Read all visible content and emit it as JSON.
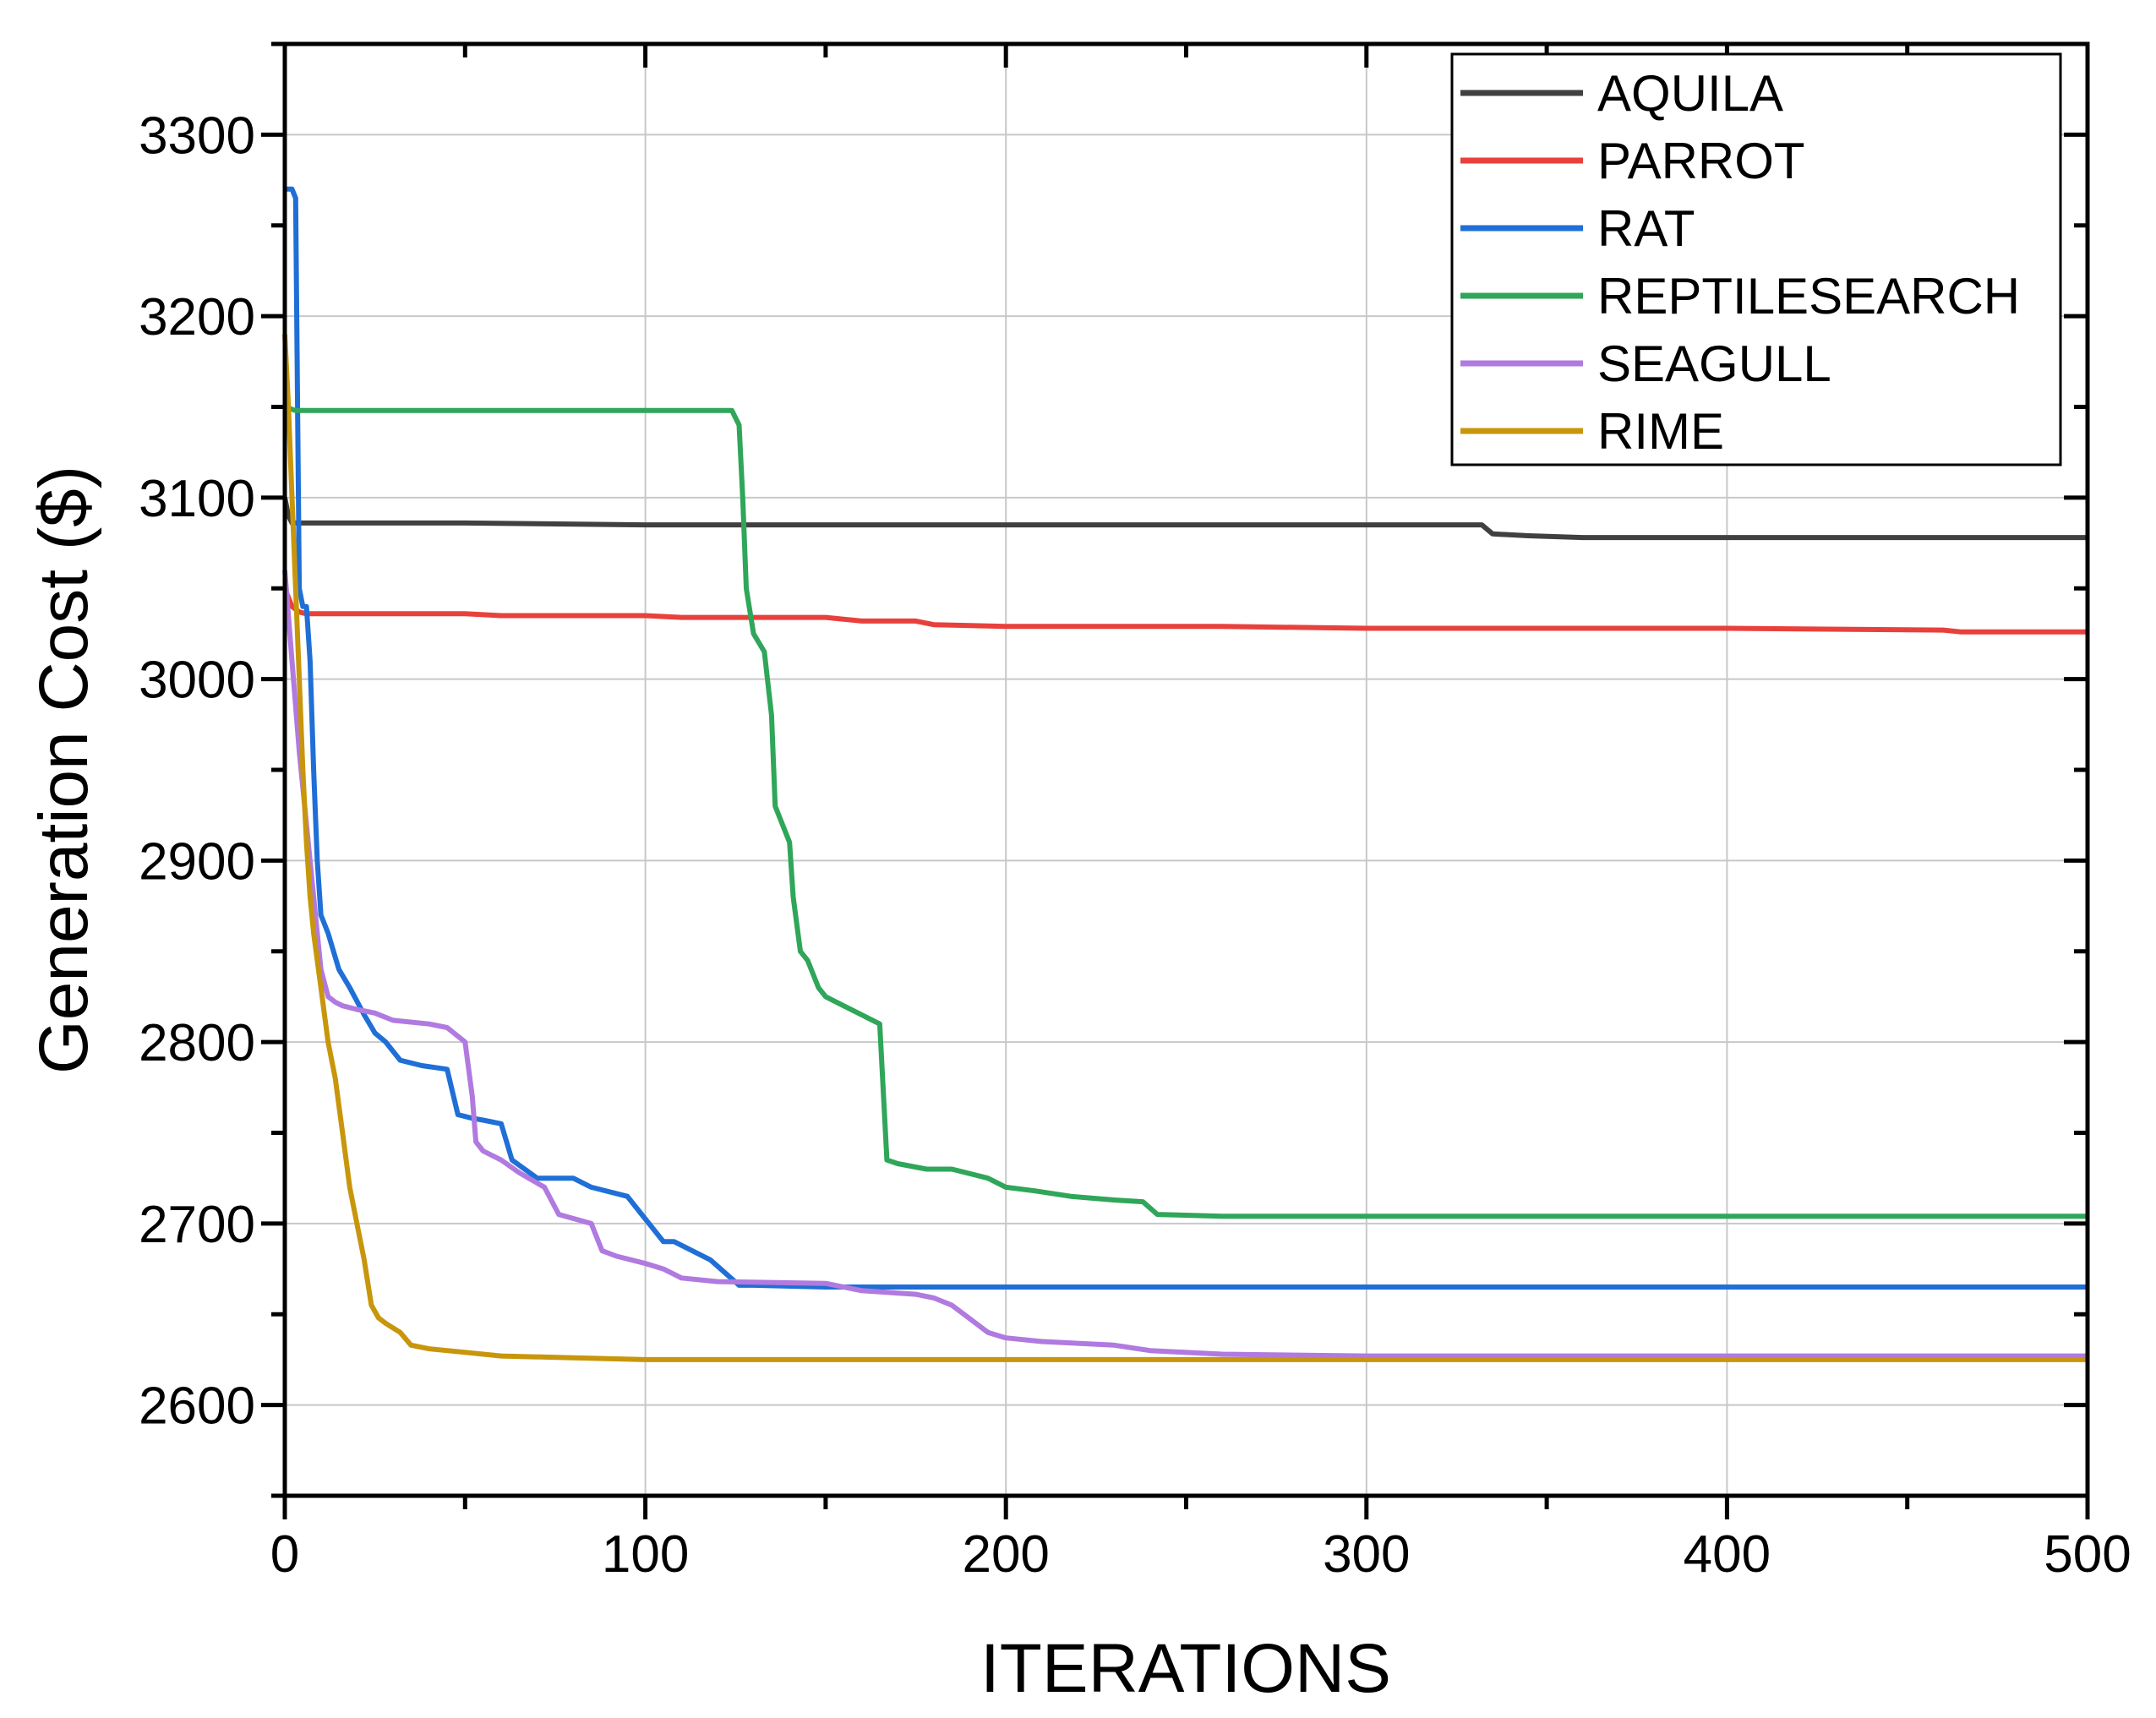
{
  "chart_data": {
    "type": "line",
    "title": "",
    "xlabel": "ITERATIONS",
    "ylabel": "Generation Cost ($)",
    "xlim": [
      0,
      500
    ],
    "ylim": [
      2550,
      3350
    ],
    "xticks": [
      0,
      100,
      200,
      300,
      400,
      500
    ],
    "yticks": [
      2600,
      2700,
      2800,
      2900,
      3000,
      3100,
      3200,
      3300
    ],
    "grid": true,
    "legend_position": "top-right",
    "series": [
      {
        "name": "AQUILA",
        "color": "#404040",
        "x": [
          0,
          1,
          2,
          3,
          50,
          100,
          150,
          200,
          250,
          300,
          332,
          335,
          345,
          360,
          400,
          450,
          500
        ],
        "y": [
          3100,
          3090,
          3086,
          3086,
          3086,
          3085,
          3085,
          3085,
          3085,
          3085,
          3085,
          3080,
          3079,
          3078,
          3078,
          3078,
          3078
        ]
      },
      {
        "name": "PARROT",
        "color": "#e8413c",
        "x": [
          0,
          2,
          4,
          6,
          50,
          60,
          100,
          110,
          150,
          160,
          175,
          180,
          200,
          260,
          300,
          400,
          460,
          465,
          500
        ],
        "y": [
          3050,
          3040,
          3037,
          3036,
          3036,
          3035,
          3035,
          3034,
          3034,
          3032,
          3032,
          3030,
          3029,
          3029,
          3028,
          3028,
          3027,
          3026,
          3026
        ]
      },
      {
        "name": "RAT",
        "color": "#1f6fd6",
        "x": [
          0,
          2,
          3,
          4,
          5,
          6,
          7,
          8,
          9,
          10,
          12,
          15,
          18,
          22,
          25,
          28,
          32,
          38,
          45,
          48,
          52,
          55,
          60,
          63,
          70,
          80,
          85,
          95,
          105,
          108,
          118,
          122,
          126,
          130,
          150,
          200,
          300,
          400,
          500
        ],
        "y": [
          3270,
          3270,
          3265,
          3050,
          3040,
          3040,
          3010,
          2950,
          2900,
          2870,
          2860,
          2840,
          2830,
          2815,
          2805,
          2800,
          2790,
          2787,
          2785,
          2760,
          2758,
          2757,
          2755,
          2735,
          2725,
          2725,
          2720,
          2715,
          2690,
          2690,
          2680,
          2673,
          2666,
          2666,
          2665,
          2665,
          2665,
          2665,
          2665
        ]
      },
      {
        "name": "REPTILESEARCH",
        "color": "#2fa65a",
        "x": [
          0,
          3,
          5,
          120,
          124,
          126,
          127,
          128,
          130,
          133,
          135,
          136,
          138,
          140,
          141,
          143,
          145,
          148,
          150,
          155,
          160,
          165,
          167,
          170,
          178,
          185,
          195,
          200,
          208,
          218,
          230,
          238,
          242,
          260,
          300,
          400,
          500
        ],
        "y": [
          3150,
          3148,
          3148,
          3148,
          3148,
          3140,
          3100,
          3050,
          3025,
          3015,
          2980,
          2930,
          2920,
          2910,
          2880,
          2850,
          2845,
          2830,
          2825,
          2820,
          2815,
          2810,
          2735,
          2733,
          2730,
          2730,
          2725,
          2720,
          2718,
          2715,
          2713,
          2712,
          2705,
          2704,
          2704,
          2704,
          2704
        ]
      },
      {
        "name": "SEAGULL",
        "color": "#b07ae0",
        "x": [
          0,
          2,
          4,
          6,
          8,
          10,
          12,
          14,
          16,
          20,
          25,
          30,
          40,
          45,
          50,
          52,
          53,
          55,
          60,
          65,
          72,
          76,
          85,
          88,
          92,
          100,
          105,
          110,
          120,
          150,
          160,
          175,
          180,
          185,
          195,
          200,
          210,
          230,
          240,
          260,
          300,
          400,
          500
        ],
        "y": [
          3060,
          3010,
          2960,
          2920,
          2880,
          2840,
          2825,
          2822,
          2820,
          2818,
          2816,
          2812,
          2810,
          2808,
          2800,
          2770,
          2745,
          2740,
          2735,
          2728,
          2720,
          2705,
          2700,
          2685,
          2682,
          2678,
          2675,
          2670,
          2668,
          2667,
          2663,
          2661,
          2659,
          2655,
          2640,
          2637,
          2635,
          2633,
          2630,
          2628,
          2627,
          2627,
          2627
        ]
      },
      {
        "name": "RIME",
        "color": "#c8960c",
        "x": [
          0,
          1,
          2,
          3,
          4,
          5,
          6,
          7,
          8,
          10,
          12,
          14,
          16,
          18,
          20,
          22,
          24,
          26,
          28,
          32,
          35,
          40,
          50,
          60,
          80,
          100,
          150,
          200,
          300,
          400,
          500
        ],
        "y": [
          3190,
          3150,
          3100,
          3050,
          3000,
          2950,
          2910,
          2880,
          2860,
          2830,
          2800,
          2780,
          2750,
          2720,
          2700,
          2680,
          2655,
          2648,
          2645,
          2640,
          2633,
          2631,
          2629,
          2627,
          2626,
          2625,
          2625,
          2625,
          2625,
          2625,
          2625
        ]
      }
    ]
  }
}
